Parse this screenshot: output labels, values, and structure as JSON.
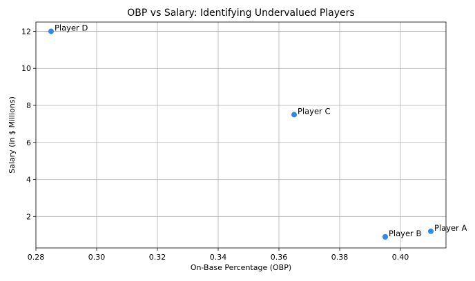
{
  "chart_data": {
    "type": "scatter",
    "title": "OBP vs Salary: Identifying Undervalued Players",
    "xlabel": "On-Base Percentage (OBP)",
    "ylabel": "Salary (in $ Millions)",
    "xlim": [
      0.28,
      0.415
    ],
    "ylim": [
      0.3,
      12.5
    ],
    "xticks": [
      "0.28",
      "0.30",
      "0.32",
      "0.34",
      "0.36",
      "0.38",
      "0.40"
    ],
    "yticks": [
      "2",
      "4",
      "6",
      "8",
      "10",
      "12"
    ],
    "grid": true,
    "point_color": "#2e8ae6",
    "points": [
      {
        "label": "Player A",
        "x": 0.41,
        "y": 1.2
      },
      {
        "label": "Player B",
        "x": 0.395,
        "y": 0.9
      },
      {
        "label": "Player C",
        "x": 0.365,
        "y": 7.5
      },
      {
        "label": "Player D",
        "x": 0.285,
        "y": 12.0
      }
    ]
  }
}
